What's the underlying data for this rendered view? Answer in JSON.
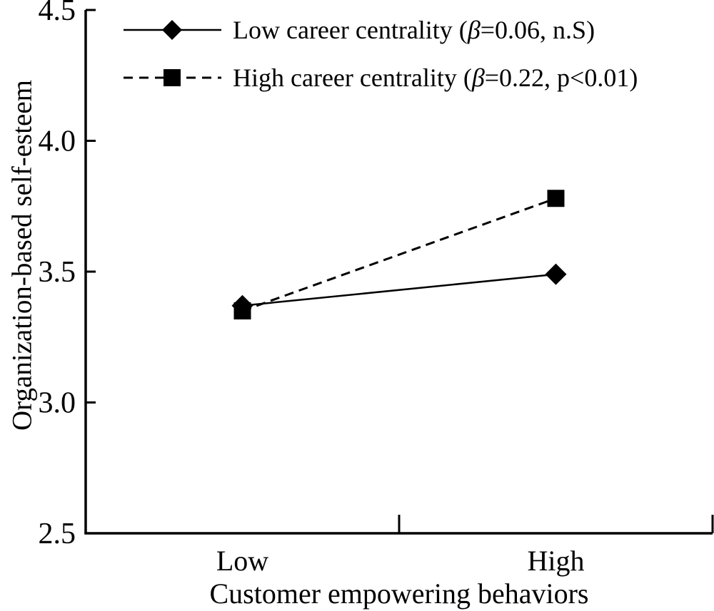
{
  "figure": {
    "background_color": "#ffffff",
    "ink_color": "#000000"
  },
  "chart_data": {
    "type": "line",
    "title": "",
    "xlabel": "Customer empowering behaviors",
    "ylabel": "Organization-based self-esteem",
    "categories": [
      "Low",
      "High"
    ],
    "ylim": [
      2.5,
      4.5
    ],
    "y_tick_values": [
      4.5,
      4.0,
      3.5,
      3.0,
      2.5
    ],
    "y_tick_labels": [
      "4.5",
      "4.0",
      "3.5",
      "3.0",
      "2.5"
    ],
    "grid": false,
    "legend_position": "top-left",
    "series": [
      {
        "name": "Low career centrality",
        "label": "Low career centrality (β=0.06, n.S)",
        "beta": 0.06,
        "significance": "n.S",
        "values": [
          3.37,
          3.49
        ],
        "line_style": "solid",
        "marker": "diamond",
        "color": "#000000"
      },
      {
        "name": "High career centrality",
        "label": "High career centrality (β=0.22, p<0.01)",
        "beta": 0.22,
        "significance": "p<0.01",
        "values": [
          3.35,
          3.78
        ],
        "line_style": "dashed",
        "marker": "square",
        "color": "#000000"
      }
    ]
  }
}
